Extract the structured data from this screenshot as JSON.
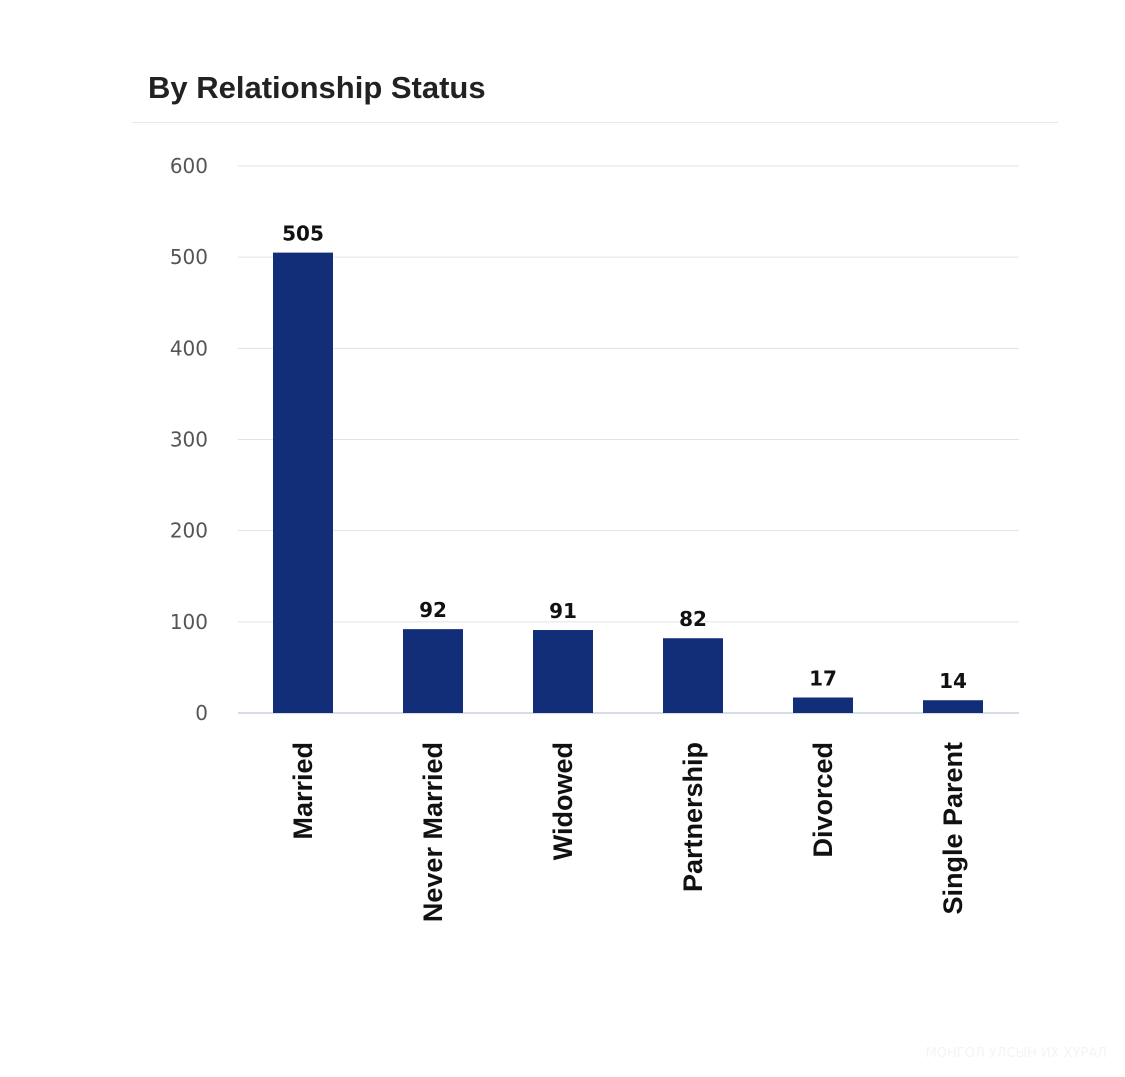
{
  "header": {
    "title": "By Relationship Status"
  },
  "watermark": "МОНГОЛ УЛСЫН ИХ ХУРАЛ",
  "chart_data": {
    "type": "bar",
    "title": "By Relationship Status",
    "categories": [
      "Married",
      "Never Married",
      "Widowed",
      "Partnership",
      "Divorced",
      "Single Parent"
    ],
    "values": [
      505,
      92,
      91,
      82,
      17,
      14
    ],
    "data_labels": [
      "505",
      "92",
      "91",
      "82",
      "17",
      "14"
    ],
    "xlabel": "",
    "ylabel": "",
    "ylim": [
      0,
      600
    ],
    "yticks": [
      0,
      100,
      200,
      300,
      400,
      500,
      600
    ],
    "ytick_labels": [
      "0",
      "100",
      "200",
      "300",
      "400",
      "500",
      "600"
    ],
    "grid": true,
    "legend": "none",
    "bar_color": "#122e78",
    "grid_color": "#e3e3e3",
    "baseline_color": "#c8cfe0"
  }
}
